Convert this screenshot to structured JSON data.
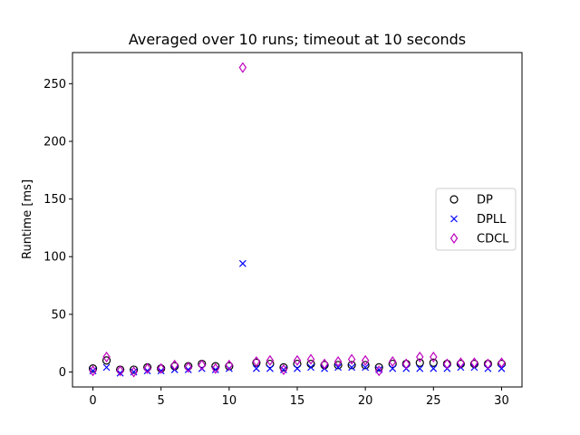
{
  "chart_data": {
    "type": "scatter",
    "title": "Averaged over 10 runs; timeout at 10 seconds",
    "xlabel": "",
    "ylabel": "Runtime [ms]",
    "xlim": [
      -1.5,
      31.5
    ],
    "ylim": [
      -13,
      277
    ],
    "xticks": [
      0,
      5,
      10,
      15,
      20,
      25,
      30
    ],
    "yticks": [
      0,
      50,
      100,
      150,
      200,
      250
    ],
    "grid": false,
    "legend_position": "center-right",
    "x": [
      0,
      1,
      2,
      3,
      4,
      5,
      6,
      7,
      8,
      9,
      10,
      11,
      12,
      13,
      14,
      15,
      16,
      17,
      18,
      19,
      20,
      21,
      22,
      23,
      24,
      25,
      26,
      27,
      28,
      29,
      30
    ],
    "series": [
      {
        "name": "DP",
        "marker": "circle",
        "color": "#000000",
        "values": [
          3,
          10,
          2,
          2,
          4,
          3,
          5,
          5,
          7,
          5,
          5,
          null,
          8,
          7,
          4,
          7,
          7,
          6,
          6,
          6,
          6,
          4,
          7,
          7,
          8,
          8,
          7,
          7,
          7,
          7,
          7
        ]
      },
      {
        "name": "DPLL",
        "marker": "x",
        "color": "#0000ff",
        "values": [
          1,
          4,
          -1,
          0,
          1,
          1,
          2,
          2,
          3,
          2,
          3,
          94,
          3,
          3,
          2,
          3,
          4,
          3,
          4,
          4,
          4,
          2,
          3,
          3,
          3,
          3,
          3,
          4,
          4,
          3,
          3
        ]
      },
      {
        "name": "CDCL",
        "marker": "diamond",
        "color": "#bf00bf",
        "values": [
          1,
          13,
          1,
          0,
          3,
          3,
          6,
          4,
          6,
          3,
          6,
          264,
          9,
          10,
          2,
          10,
          11,
          7,
          9,
          11,
          10,
          1,
          9,
          7,
          13,
          13,
          7,
          8,
          8,
          7,
          8
        ]
      }
    ]
  }
}
